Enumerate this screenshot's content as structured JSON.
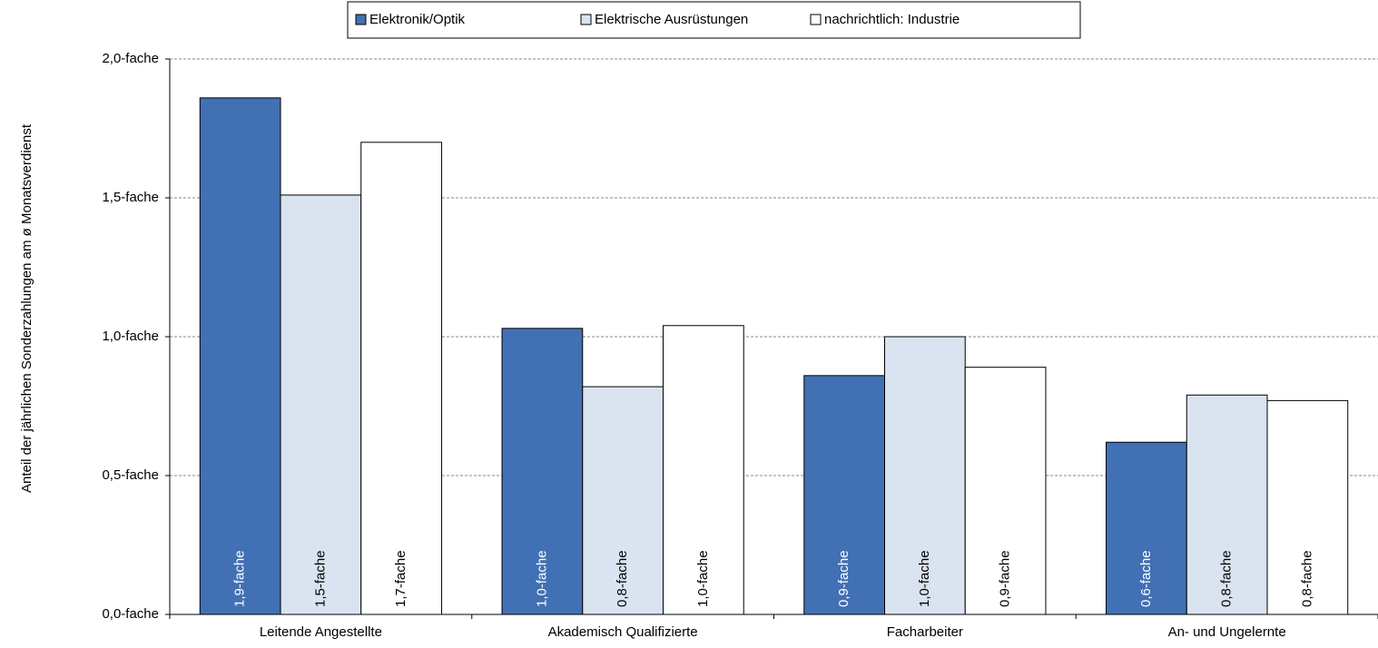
{
  "chart_data": {
    "type": "bar",
    "y_axis_label": "Anteil der jährlichen  Sonderzahlungen  am ø Monatsverdienst",
    "categories": [
      "Leitende Angestellte",
      "Akademisch Qualifizierte",
      "Facharbeiter",
      "An- und Ungelernte"
    ],
    "series": [
      {
        "name": "Elektronik/Optik",
        "color": "#4270b4",
        "values": [
          1.86,
          1.03,
          0.86,
          0.62
        ],
        "value_labels": [
          "1,9-fache",
          "1,0-fache",
          "0,9-fache",
          "0,6-fache"
        ]
      },
      {
        "name": "Elektrische Ausrüstungen",
        "color": "#dae3f0",
        "values": [
          1.51,
          0.82,
          1.0,
          0.79
        ],
        "value_labels": [
          "1,5-fache",
          "0,8-fache",
          "1,0-fache",
          "0,8-fache"
        ]
      },
      {
        "name": "nachrichtlich: Industrie",
        "color": "#ffffff",
        "values": [
          1.7,
          1.04,
          0.89,
          0.77
        ],
        "value_labels": [
          "1,7-fache",
          "1,0-fache",
          "0,9-fache",
          "0,8-fache"
        ]
      }
    ],
    "ylim": [
      0,
      2
    ],
    "yticks": [
      {
        "value": 0,
        "label": "0,0-fache"
      },
      {
        "value": 0.5,
        "label": "0,5-fache"
      },
      {
        "value": 1,
        "label": "1,0-fache"
      },
      {
        "value": 1.5,
        "label": "1,5-fache"
      },
      {
        "value": 2,
        "label": "2,0-fache"
      }
    ],
    "grid": true,
    "legend": "top"
  }
}
